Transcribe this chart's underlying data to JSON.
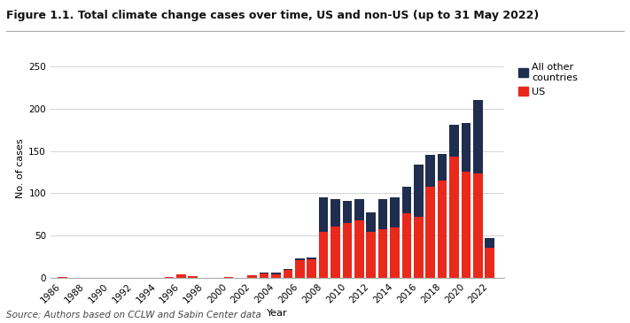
{
  "title": "Figure 1.1. Total climate change cases over time, US and non-US (up to 31 May 2022)",
  "xlabel": "Year",
  "ylabel": "No. of cases",
  "source": "Source: Authors based on CCLW and Sabin Center data",
  "years": [
    1986,
    1987,
    1988,
    1989,
    1990,
    1991,
    1992,
    1993,
    1994,
    1995,
    1996,
    1997,
    1998,
    1999,
    2000,
    2001,
    2002,
    2003,
    2004,
    2005,
    2006,
    2007,
    2008,
    2009,
    2010,
    2011,
    2012,
    2013,
    2014,
    2015,
    2016,
    2017,
    2018,
    2019,
    2020,
    2021,
    2022
  ],
  "us_cases": [
    1,
    0,
    0,
    0,
    0,
    0,
    0,
    0,
    0,
    1,
    4,
    2,
    0,
    0,
    1,
    0,
    3,
    5,
    4,
    9,
    21,
    22,
    54,
    61,
    65,
    68,
    54,
    58,
    60,
    76,
    72,
    108,
    115,
    143,
    126,
    124,
    36
  ],
  "other_cases": [
    0,
    0,
    0,
    0,
    0,
    0,
    0,
    0,
    0,
    0,
    0,
    0,
    0,
    0,
    0,
    0,
    0,
    1,
    2,
    1,
    2,
    2,
    41,
    32,
    26,
    25,
    23,
    35,
    35,
    32,
    62,
    37,
    32,
    38,
    57,
    86,
    11
  ],
  "us_color": "#e8291c",
  "other_color": "#1f2d4e",
  "ylim": [
    0,
    260
  ],
  "yticks": [
    0,
    50,
    100,
    150,
    200,
    250
  ],
  "xticks": [
    1986,
    1988,
    1990,
    1992,
    1994,
    1996,
    1998,
    2000,
    2002,
    2004,
    2006,
    2008,
    2010,
    2012,
    2014,
    2016,
    2018,
    2020,
    2022
  ],
  "legend_other": "All other\ncountries",
  "legend_us": "US",
  "title_fontsize": 9,
  "label_fontsize": 8,
  "tick_fontsize": 7.5
}
